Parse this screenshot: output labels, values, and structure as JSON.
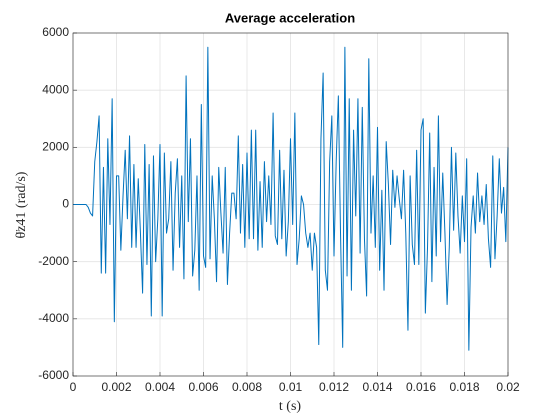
{
  "chart_data": {
    "type": "line",
    "title": "Average acceleration",
    "x_label": "t (s)",
    "y_label": "θ̈z41 (rad/s)",
    "xlim": [
      0,
      0.02
    ],
    "ylim": [
      -6000,
      6000
    ],
    "xticks": [
      0,
      0.002,
      0.004,
      0.006,
      0.008,
      0.01,
      0.012,
      0.014,
      0.016,
      0.018,
      0.02
    ],
    "yticks": [
      -6000,
      -4000,
      -2000,
      0,
      2000,
      4000,
      6000
    ],
    "grid": true,
    "x": [
      0,
      0.0001,
      0.0002,
      0.0003,
      0.0004,
      0.0005,
      0.0006,
      0.0007,
      0.0008,
      0.0009,
      0.001,
      0.0011,
      0.0012,
      0.0013,
      0.0014,
      0.0015,
      0.0016,
      0.0017,
      0.0018,
      0.0019,
      0.002,
      0.0021,
      0.0022,
      0.0023,
      0.0024,
      0.0025,
      0.0026,
      0.0027,
      0.0028,
      0.0029,
      0.003,
      0.0031,
      0.0032,
      0.0033,
      0.0034,
      0.0035,
      0.0036,
      0.0037,
      0.0038,
      0.0039,
      0.004,
      0.0041,
      0.0042,
      0.0043,
      0.0044,
      0.0045,
      0.0046,
      0.0047,
      0.0048,
      0.0049,
      0.005,
      0.0051,
      0.0052,
      0.0053,
      0.0054,
      0.0055,
      0.0056,
      0.0057,
      0.0058,
      0.0059,
      0.006,
      0.0061,
      0.0062,
      0.0063,
      0.0064,
      0.0065,
      0.0066,
      0.0067,
      0.0068,
      0.0069,
      0.007,
      0.0071,
      0.0072,
      0.0073,
      0.0074,
      0.0075,
      0.0076,
      0.0077,
      0.0078,
      0.0079,
      0.008,
      0.0081,
      0.0082,
      0.0083,
      0.0084,
      0.0085,
      0.0086,
      0.0087,
      0.0088,
      0.0089,
      0.009,
      0.0091,
      0.0092,
      0.0093,
      0.0094,
      0.0095,
      0.0096,
      0.0097,
      0.0098,
      0.0099,
      0.01,
      0.0101,
      0.0102,
      0.0103,
      0.0104,
      0.0105,
      0.0106,
      0.0107,
      0.0108,
      0.0109,
      0.011,
      0.0111,
      0.0112,
      0.0113,
      0.0114,
      0.0115,
      0.0116,
      0.0117,
      0.0118,
      0.0119,
      0.012,
      0.0121,
      0.0122,
      0.0123,
      0.0124,
      0.0125,
      0.0126,
      0.0127,
      0.0128,
      0.0129,
      0.013,
      0.0131,
      0.0132,
      0.0133,
      0.0134,
      0.0135,
      0.0136,
      0.0137,
      0.0138,
      0.0139,
      0.014,
      0.0141,
      0.0142,
      0.0143,
      0.0144,
      0.0145,
      0.0146,
      0.0147,
      0.0148,
      0.0149,
      0.015,
      0.0151,
      0.0152,
      0.0153,
      0.0154,
      0.0155,
      0.0156,
      0.0157,
      0.0158,
      0.0159,
      0.016,
      0.0161,
      0.0162,
      0.0163,
      0.0164,
      0.0165,
      0.0166,
      0.0167,
      0.0168,
      0.0169,
      0.017,
      0.0171,
      0.0172,
      0.0173,
      0.0174,
      0.0175,
      0.0176,
      0.0177,
      0.0178,
      0.0179,
      0.018,
      0.0181,
      0.0182,
      0.0183,
      0.0184,
      0.0185,
      0.0186,
      0.0187,
      0.0188,
      0.0189,
      0.019,
      0.0191,
      0.0192,
      0.0193,
      0.0194,
      0.0195,
      0.0196,
      0.0197,
      0.0198,
      0.0199,
      0.02
    ],
    "series": [
      {
        "color": "#0072bd",
        "values": [
          0,
          0,
          0,
          0,
          0,
          0,
          0,
          -100,
          -300,
          -400,
          1500,
          2200,
          3100,
          -2400,
          1300,
          -2400,
          2300,
          -700,
          3700,
          -4100,
          1000,
          1000,
          -1600,
          300,
          1900,
          -500,
          2400,
          -1500,
          1400,
          -1500,
          900,
          -1000,
          -3100,
          2100,
          -2100,
          1400,
          -3900,
          1700,
          -2000,
          -500,
          2100,
          -3900,
          1800,
          -1000,
          -500,
          1500,
          -2300,
          400,
          1600,
          -1500,
          1000,
          -2600,
          4500,
          -600,
          2300,
          -2500,
          -1600,
          1000,
          -3000,
          3500,
          -1800,
          -2200,
          5500,
          -1900,
          1000,
          -500,
          -2700,
          1300,
          -300,
          -1700,
          1300,
          -2800,
          -1000,
          400,
          400,
          -500,
          2400,
          -1000,
          1400,
          -1500,
          1800,
          -1200,
          2600,
          -1200,
          2600,
          -1600,
          800,
          -1500,
          1500,
          -600,
          1000,
          -700,
          3200,
          -1100,
          -1400,
          1900,
          -1200,
          1200,
          -1800,
          -600,
          2300,
          -700,
          3200,
          -2100,
          -1200,
          300,
          0,
          -1000,
          -1500,
          -1000,
          -2300,
          -1000,
          -1500,
          -4900,
          2300,
          4600,
          -2300,
          -3000,
          1500,
          3100,
          -1800,
          1500,
          3800,
          -1000,
          -5000,
          5500,
          -2500,
          3700,
          -3000,
          2600,
          -400,
          3700,
          -1700,
          3400,
          -1200,
          -3200,
          5100,
          -1000,
          1000,
          -1500,
          2700,
          -2300,
          500,
          -3000,
          2200,
          700,
          -1400,
          1200,
          -100,
          1000,
          200,
          -500,
          1200,
          -1000,
          -4400,
          1000,
          -1400,
          -2100,
          1900,
          -2100,
          2600,
          3000,
          -3800,
          -1500,
          2500,
          -2700,
          1300,
          -1800,
          3100,
          -1300,
          1100,
          -1000,
          -3500,
          -1500,
          2000,
          -900,
          1800,
          -400,
          -1700,
          300,
          -1300,
          1600,
          -5100,
          -800,
          300,
          -1000,
          1100,
          -600,
          300,
          -700,
          700,
          -1200,
          -2200,
          1700,
          -1900,
          -400,
          1600,
          -300,
          600,
          -1300,
          2000
        ]
      }
    ]
  }
}
